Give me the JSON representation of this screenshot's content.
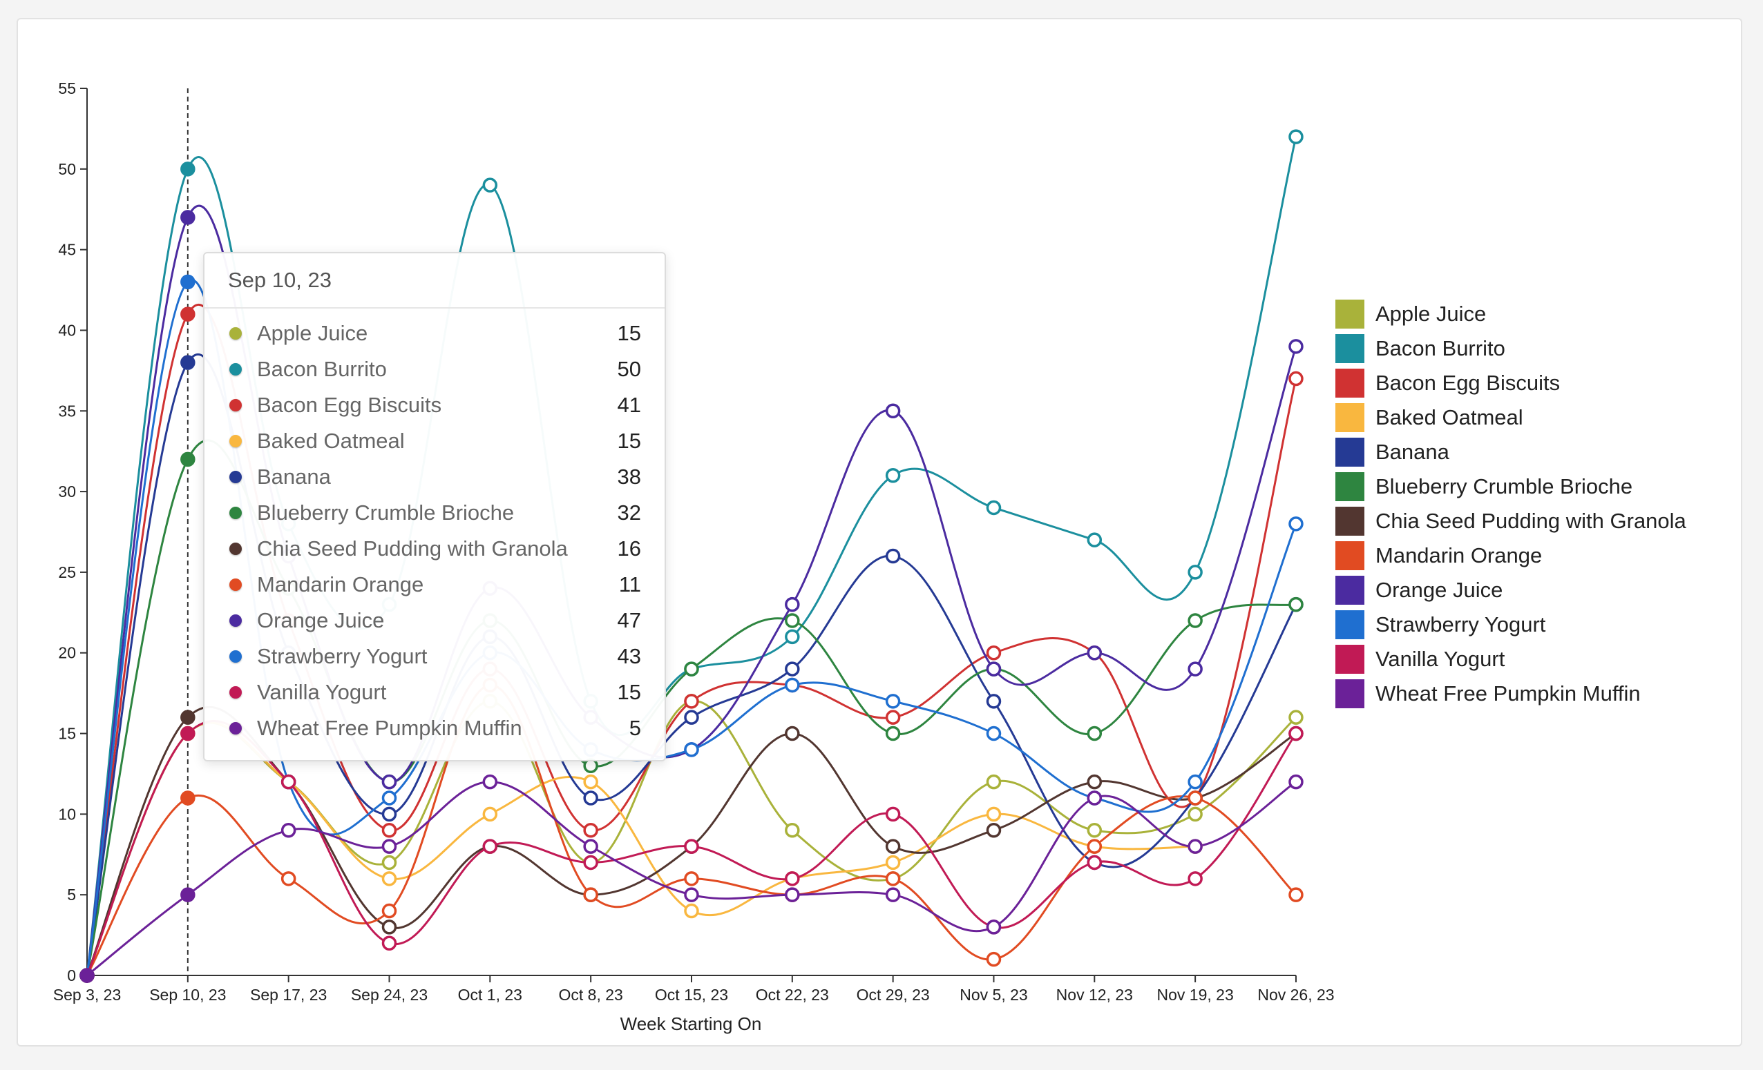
{
  "chart_data": {
    "type": "line",
    "xlabel": "Week Starting On",
    "ylabel": "",
    "ylim": [
      0,
      55
    ],
    "yticks": [
      0,
      5,
      10,
      15,
      20,
      25,
      30,
      35,
      40,
      45,
      50,
      55
    ],
    "categories": [
      "Sep 3, 23",
      "Sep 10, 23",
      "Sep 17, 23",
      "Sep 24, 23",
      "Oct 1, 23",
      "Oct 8, 23",
      "Oct 15, 23",
      "Oct 22, 23",
      "Oct 29, 23",
      "Nov 5, 23",
      "Nov 12, 23",
      "Nov 19, 23",
      "Nov 26, 23"
    ],
    "highlight_index": 1,
    "legend_position": "right",
    "series": [
      {
        "name": "Apple Juice",
        "color": "#a9b23a",
        "values": [
          0,
          15,
          12,
          7,
          17,
          7,
          17,
          9,
          6,
          12,
          9,
          10,
          16
        ]
      },
      {
        "name": "Bacon Burrito",
        "color": "#1b8f9e",
        "values": [
          0,
          50,
          28,
          23,
          49,
          17,
          19,
          21,
          31,
          29,
          27,
          25,
          52
        ]
      },
      {
        "name": "Bacon Egg Biscuits",
        "color": "#d03232",
        "values": [
          0,
          41,
          22,
          9,
          19,
          9,
          17,
          18,
          16,
          20,
          20,
          11,
          37
        ]
      },
      {
        "name": "Baked Oatmeal",
        "color": "#f9b73f",
        "values": [
          0,
          15,
          12,
          6,
          10,
          12,
          4,
          6,
          7,
          10,
          8,
          8,
          null
        ]
      },
      {
        "name": "Banana",
        "color": "#253a94",
        "values": [
          0,
          38,
          20,
          10,
          21,
          11,
          16,
          19,
          26,
          17,
          7,
          11,
          23
        ]
      },
      {
        "name": "Blueberry Crumble Brioche",
        "color": "#2e8540",
        "values": [
          0,
          32,
          24,
          12,
          22,
          13,
          19,
          22,
          15,
          19,
          15,
          22,
          23
        ]
      },
      {
        "name": "Chia Seed Pudding with Granola",
        "color": "#523630",
        "values": [
          0,
          16,
          12,
          3,
          8,
          5,
          8,
          15,
          8,
          9,
          12,
          11,
          15
        ]
      },
      {
        "name": "Mandarin Orange",
        "color": "#e14b22",
        "values": [
          0,
          11,
          6,
          4,
          18,
          5,
          6,
          5,
          6,
          1,
          8,
          11,
          5
        ]
      },
      {
        "name": "Orange Juice",
        "color": "#4b2ba0",
        "values": [
          0,
          47,
          26,
          12,
          24,
          16,
          14,
          23,
          35,
          19,
          20,
          19,
          39
        ]
      },
      {
        "name": "Strawberry Yogurt",
        "color": "#1f6fd0",
        "values": [
          0,
          43,
          12,
          11,
          20,
          14,
          14,
          18,
          17,
          15,
          11,
          12,
          28
        ]
      },
      {
        "name": "Vanilla Yogurt",
        "color": "#c11a55",
        "values": [
          0,
          15,
          12,
          2,
          8,
          7,
          8,
          6,
          10,
          3,
          7,
          6,
          15
        ]
      },
      {
        "name": "Wheat Free Pumpkin Muffin",
        "color": "#6b2198",
        "values": [
          0,
          5,
          9,
          8,
          12,
          8,
          5,
          5,
          5,
          3,
          11,
          8,
          12
        ]
      }
    ]
  },
  "tooltip": {
    "title": "Sep 10, 23",
    "rows": [
      {
        "label": "Apple Juice",
        "value": "15",
        "color": "#a9b23a"
      },
      {
        "label": "Bacon Burrito",
        "value": "50",
        "color": "#1b8f9e"
      },
      {
        "label": "Bacon Egg Biscuits",
        "value": "41",
        "color": "#d03232"
      },
      {
        "label": "Baked Oatmeal",
        "value": "15",
        "color": "#f9b73f"
      },
      {
        "label": "Banana",
        "value": "38",
        "color": "#253a94"
      },
      {
        "label": "Blueberry Crumble Brioche",
        "value": "32",
        "color": "#2e8540"
      },
      {
        "label": "Chia Seed Pudding with Granola",
        "value": "16",
        "color": "#523630"
      },
      {
        "label": "Mandarin Orange",
        "value": "11",
        "color": "#e14b22"
      },
      {
        "label": "Orange Juice",
        "value": "47",
        "color": "#4b2ba0"
      },
      {
        "label": "Strawberry Yogurt",
        "value": "43",
        "color": "#1f6fd0"
      },
      {
        "label": "Vanilla Yogurt",
        "value": "15",
        "color": "#c11a55"
      },
      {
        "label": "Wheat Free Pumpkin Muffin",
        "value": "5",
        "color": "#6b2198"
      }
    ]
  }
}
